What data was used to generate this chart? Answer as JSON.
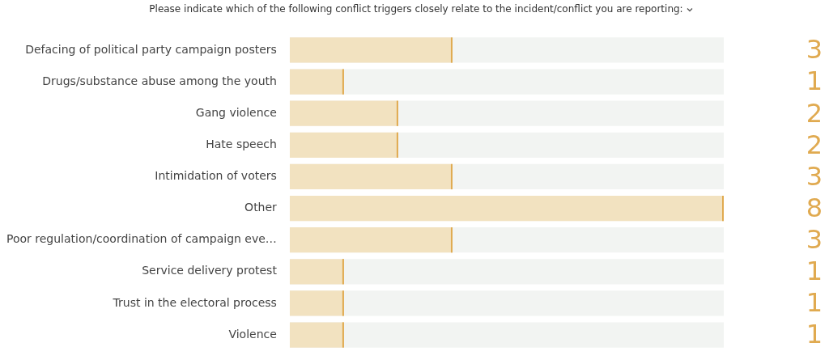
{
  "chart_data": {
    "type": "bar",
    "orientation": "horizontal",
    "title": "Please indicate which of the following conflict triggers closely relate to the incident/conflict you are reporting:",
    "categories": [
      "Defacing of political party campaign posters",
      "Drugs/substance abuse among the youth",
      "Gang violence",
      "Hate speech",
      "Intimidation of voters",
      "Other",
      "Poor regulation/coordination of campaign eve…",
      "Service delivery protest",
      "Trust in the electoral process",
      "Violence"
    ],
    "values": [
      3,
      1,
      2,
      2,
      3,
      8,
      3,
      1,
      1,
      1
    ],
    "color": "#f2e2c0",
    "xlim": [
      0,
      8
    ],
    "tick_labels": "y",
    "legend": false,
    "data_labels": true
  }
}
